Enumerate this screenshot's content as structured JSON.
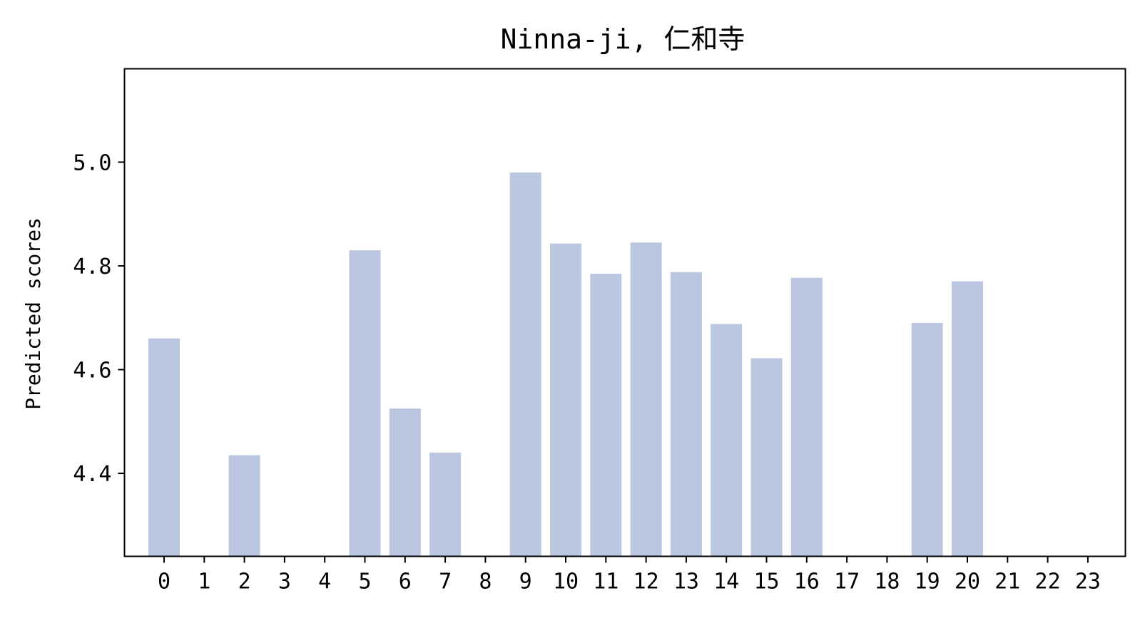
{
  "chart_data": {
    "type": "bar",
    "title": "Ninna-ji, 仁和寺",
    "xlabel": "",
    "ylabel": "Predicted scores",
    "categories": [
      "0",
      "1",
      "2",
      "3",
      "4",
      "5",
      "6",
      "7",
      "8",
      "9",
      "10",
      "11",
      "12",
      "13",
      "14",
      "15",
      "16",
      "17",
      "18",
      "19",
      "20",
      "21",
      "22",
      "23"
    ],
    "values": [
      4.66,
      null,
      4.435,
      null,
      null,
      4.83,
      4.525,
      4.44,
      null,
      4.98,
      4.843,
      4.785,
      4.845,
      4.788,
      4.688,
      4.622,
      4.777,
      null,
      null,
      4.69,
      4.77,
      null,
      null,
      null
    ],
    "ylim": [
      4.24,
      5.18
    ],
    "yticks": [
      4.4,
      4.6,
      4.8,
      5.0
    ],
    "ytick_labels": [
      "4.4",
      "4.6",
      "4.8",
      "5.0"
    ],
    "bar_color": "#bbc7e0",
    "grid": false,
    "legend": null
  }
}
